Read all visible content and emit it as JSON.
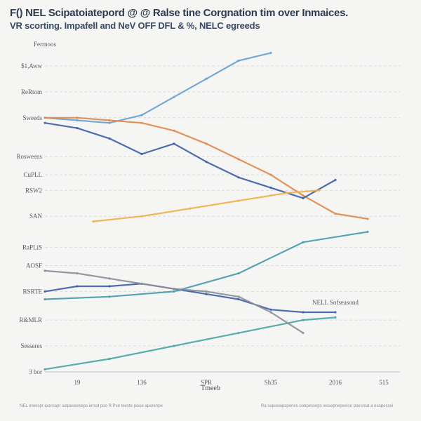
{
  "header": {
    "title": "F() NEL Scipatoiatepord @ @ Ralse tine Corgnation tim over Inmaices.",
    "subtitle": "VR scorting. Impafell and NeV OFF DFL & %, NELC egreeds"
  },
  "chart_data": {
    "type": "line",
    "xlabel": "Tmeeb",
    "ylabel": "",
    "y_axis_header": "Ferrnoos",
    "x_ticks": [
      {
        "label": "19",
        "x": 1
      },
      {
        "label": "136",
        "x": 3
      },
      {
        "label": "SPR",
        "x": 5
      },
      {
        "label": "Sh35",
        "x": 7
      },
      {
        "label": "2016",
        "x": 9
      },
      {
        "label": "515",
        "x": 10.5
      }
    ],
    "y_ticks": [
      {
        "label": "$1,Aww",
        "y": 11.8
      },
      {
        "label": "ReRtom",
        "y": 10.8
      },
      {
        "label": "Sweeds",
        "y": 9.8
      },
      {
        "label": "Rosweens",
        "y": 8.3
      },
      {
        "label": "CuPLL",
        "y": 7.6
      },
      {
        "label": "RSW2",
        "y": 7.0
      },
      {
        "label": "SAN",
        "y": 6.0
      },
      {
        "label": "RaPLiS",
        "y": 4.8
      },
      {
        "label": "AOSF",
        "y": 4.1
      },
      {
        "label": "RSRTE",
        "y": 3.1
      },
      {
        "label": "R&MLR",
        "y": 2.0
      },
      {
        "label": "Sesseres",
        "y": 1.0
      },
      {
        "label": "3 bor",
        "y": 0.0
      }
    ],
    "xlim": [
      0,
      11
    ],
    "ylim": [
      0,
      12.5
    ],
    "grid": true,
    "annotation": "NELL Sofseasond",
    "footer_left": "NEL elwespr iponsapr sotpeseeseps iensd poo R.Pse teeste poise aporenpe",
    "footer_right": "Ra sopseeipspenes oonpesseps iessepnepeeiso poesnsd a esopessei",
    "series": [
      {
        "color": "#6aa3cf",
        "x": [
          0,
          1,
          2,
          3,
          4,
          5,
          6,
          7
        ],
        "y": [
          9.8,
          9.7,
          9.6,
          9.9,
          10.6,
          11.3,
          12.0,
          12.3
        ]
      },
      {
        "color": "#e08a4a",
        "x": [
          0,
          1,
          2,
          3,
          4,
          5,
          6,
          7,
          8,
          9,
          10
        ],
        "y": [
          9.8,
          9.8,
          9.7,
          9.6,
          9.3,
          8.8,
          8.2,
          7.6,
          6.8,
          6.1,
          5.9
        ]
      },
      {
        "color": "#3f5fa8",
        "x": [
          0,
          1,
          2,
          3,
          4,
          5,
          6,
          7,
          8,
          9
        ],
        "y": [
          9.6,
          9.4,
          9.0,
          8.4,
          8.8,
          8.1,
          7.5,
          7.1,
          6.7,
          7.4
        ]
      },
      {
        "color": "#f0b04a",
        "x": [
          1.5,
          3,
          4.5,
          6,
          7,
          7.5,
          8.5
        ],
        "y": [
          5.8,
          6.0,
          6.3,
          6.6,
          6.8,
          6.9,
          7.0
        ]
      },
      {
        "color": "#4a9ab0",
        "x": [
          0,
          2,
          4,
          6,
          8,
          10
        ],
        "y": [
          2.8,
          2.9,
          3.1,
          3.8,
          5.0,
          5.4
        ]
      },
      {
        "color": "#3f5fa8",
        "x": [
          0,
          1,
          2,
          3,
          4,
          5,
          6,
          7,
          8,
          9
        ],
        "y": [
          3.1,
          3.3,
          3.3,
          3.4,
          3.2,
          3.0,
          2.8,
          2.4,
          2.3,
          2.3
        ]
      },
      {
        "color": "#4aa6a6",
        "x": [
          0,
          2,
          4,
          6,
          8,
          9
        ],
        "y": [
          0.1,
          0.5,
          1.0,
          1.5,
          2.0,
          2.1
        ]
      },
      {
        "color": "#8a8f98",
        "x": [
          0,
          1,
          2,
          3,
          4,
          5,
          6,
          7,
          8
        ],
        "y": [
          3.9,
          3.8,
          3.6,
          3.4,
          3.2,
          3.1,
          2.9,
          2.3,
          1.5
        ]
      }
    ]
  }
}
